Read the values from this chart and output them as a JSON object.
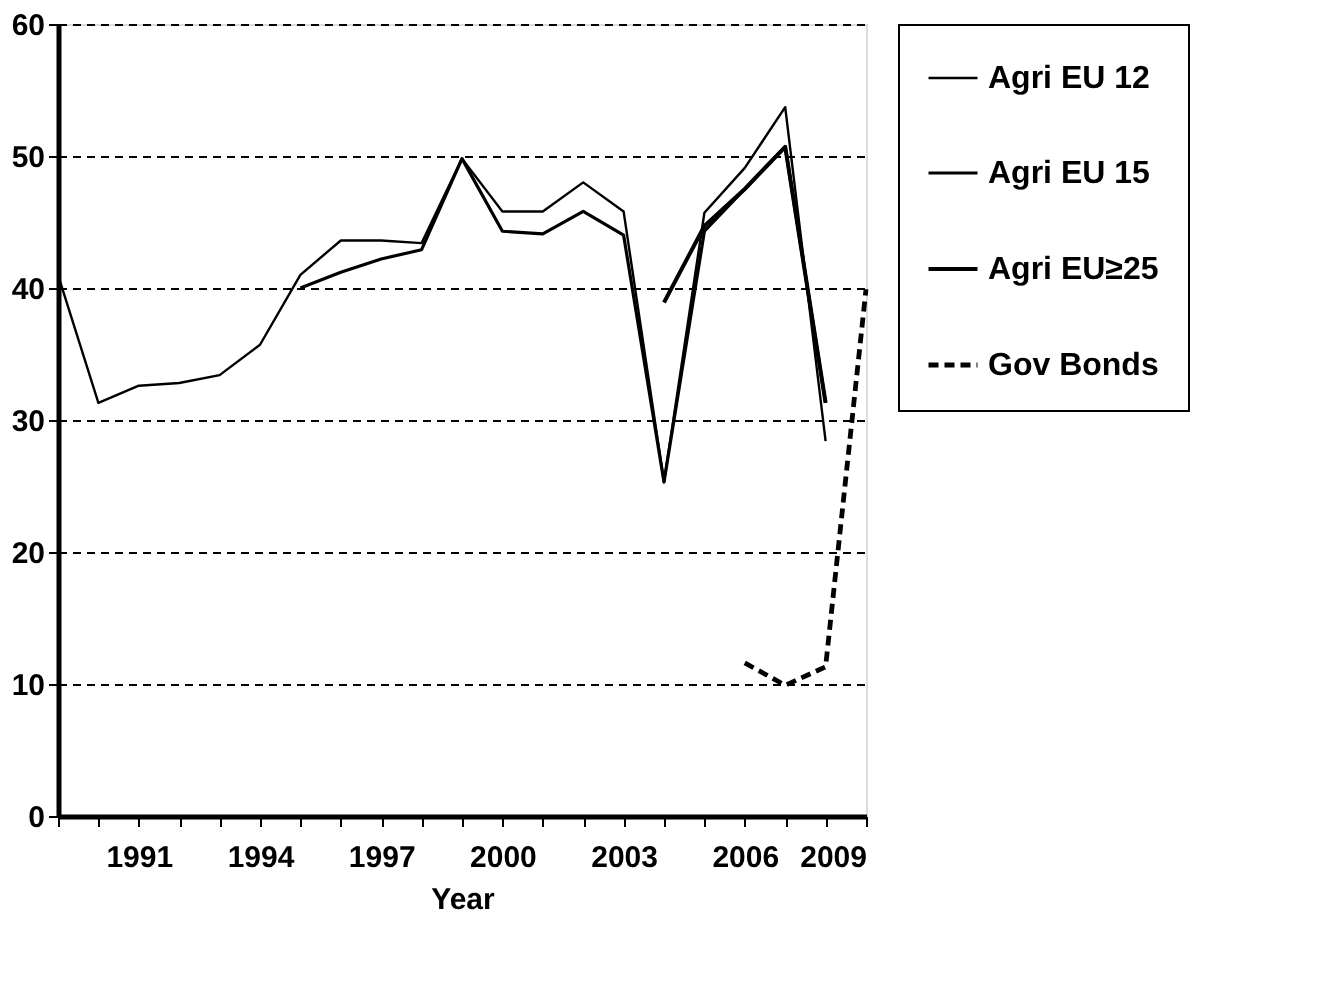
{
  "chart_data": {
    "type": "line",
    "xlabel": "Year",
    "x": [
      1989,
      1990,
      1991,
      1992,
      1993,
      1994,
      1995,
      1996,
      1997,
      1998,
      1999,
      2000,
      2001,
      2002,
      2003,
      2004,
      2005,
      2006,
      2007,
      2008,
      2009
    ],
    "series": [
      {
        "name": "Agri EU 12",
        "color": "#000000",
        "line_style": "solid",
        "values": [
          41,
          31.3,
          32.6,
          32.8,
          33.4,
          35.7,
          41,
          43.6,
          43.6,
          43.4,
          49.8,
          45.8,
          45.8,
          48,
          45.8,
          25.3,
          45.7,
          49.1,
          53.7,
          28.4,
          null
        ]
      },
      {
        "name": "Agri EU 15",
        "color": "#000000",
        "line_style": "solid",
        "values": [
          null,
          null,
          null,
          null,
          null,
          null,
          40,
          41.2,
          42.2,
          42.9,
          49.8,
          44.3,
          44.1,
          45.8,
          44,
          25.3,
          44.3,
          47.5,
          50.7,
          31.3,
          null
        ]
      },
      {
        "name": "Agri EU≥25",
        "color": "#000000",
        "line_style": "solid",
        "values": [
          null,
          null,
          null,
          null,
          null,
          null,
          null,
          null,
          null,
          null,
          null,
          null,
          null,
          null,
          null,
          38.9,
          44.7,
          47.5,
          50.7,
          31.3,
          null
        ]
      },
      {
        "name": "Gov Bonds",
        "color": "#000000",
        "line_style": "dashed",
        "values": [
          null,
          null,
          null,
          null,
          null,
          null,
          null,
          null,
          null,
          null,
          null,
          null,
          null,
          null,
          null,
          null,
          null,
          11.6,
          9.9,
          11.3,
          39.9
        ]
      }
    ],
    "xlim": [
      1989,
      2009
    ],
    "xticks": [
      {
        "value": 1989,
        "label": null
      },
      {
        "value": 1990,
        "label": null
      },
      1991,
      {
        "value": 1992,
        "label": null
      },
      {
        "value": 1993,
        "label": null
      },
      1994,
      {
        "value": 1995,
        "label": null
      },
      {
        "value": 1996,
        "label": null
      },
      1997,
      {
        "value": 1998,
        "label": null
      },
      {
        "value": 1999,
        "label": null
      },
      2000,
      {
        "value": 2001,
        "label": null
      },
      {
        "value": 2002,
        "label": null
      },
      2003,
      {
        "value": 2004,
        "label": null
      },
      {
        "value": 2005,
        "label": null
      },
      2006,
      {
        "value": 2007,
        "label": null
      },
      {
        "value": 2008,
        "label": null
      },
      2009
    ],
    "ylim": [
      0,
      60
    ],
    "yticks": [
      0,
      10,
      20,
      30,
      40,
      50,
      60
    ],
    "grid": "y",
    "legend": "right",
    "marker": "none"
  }
}
